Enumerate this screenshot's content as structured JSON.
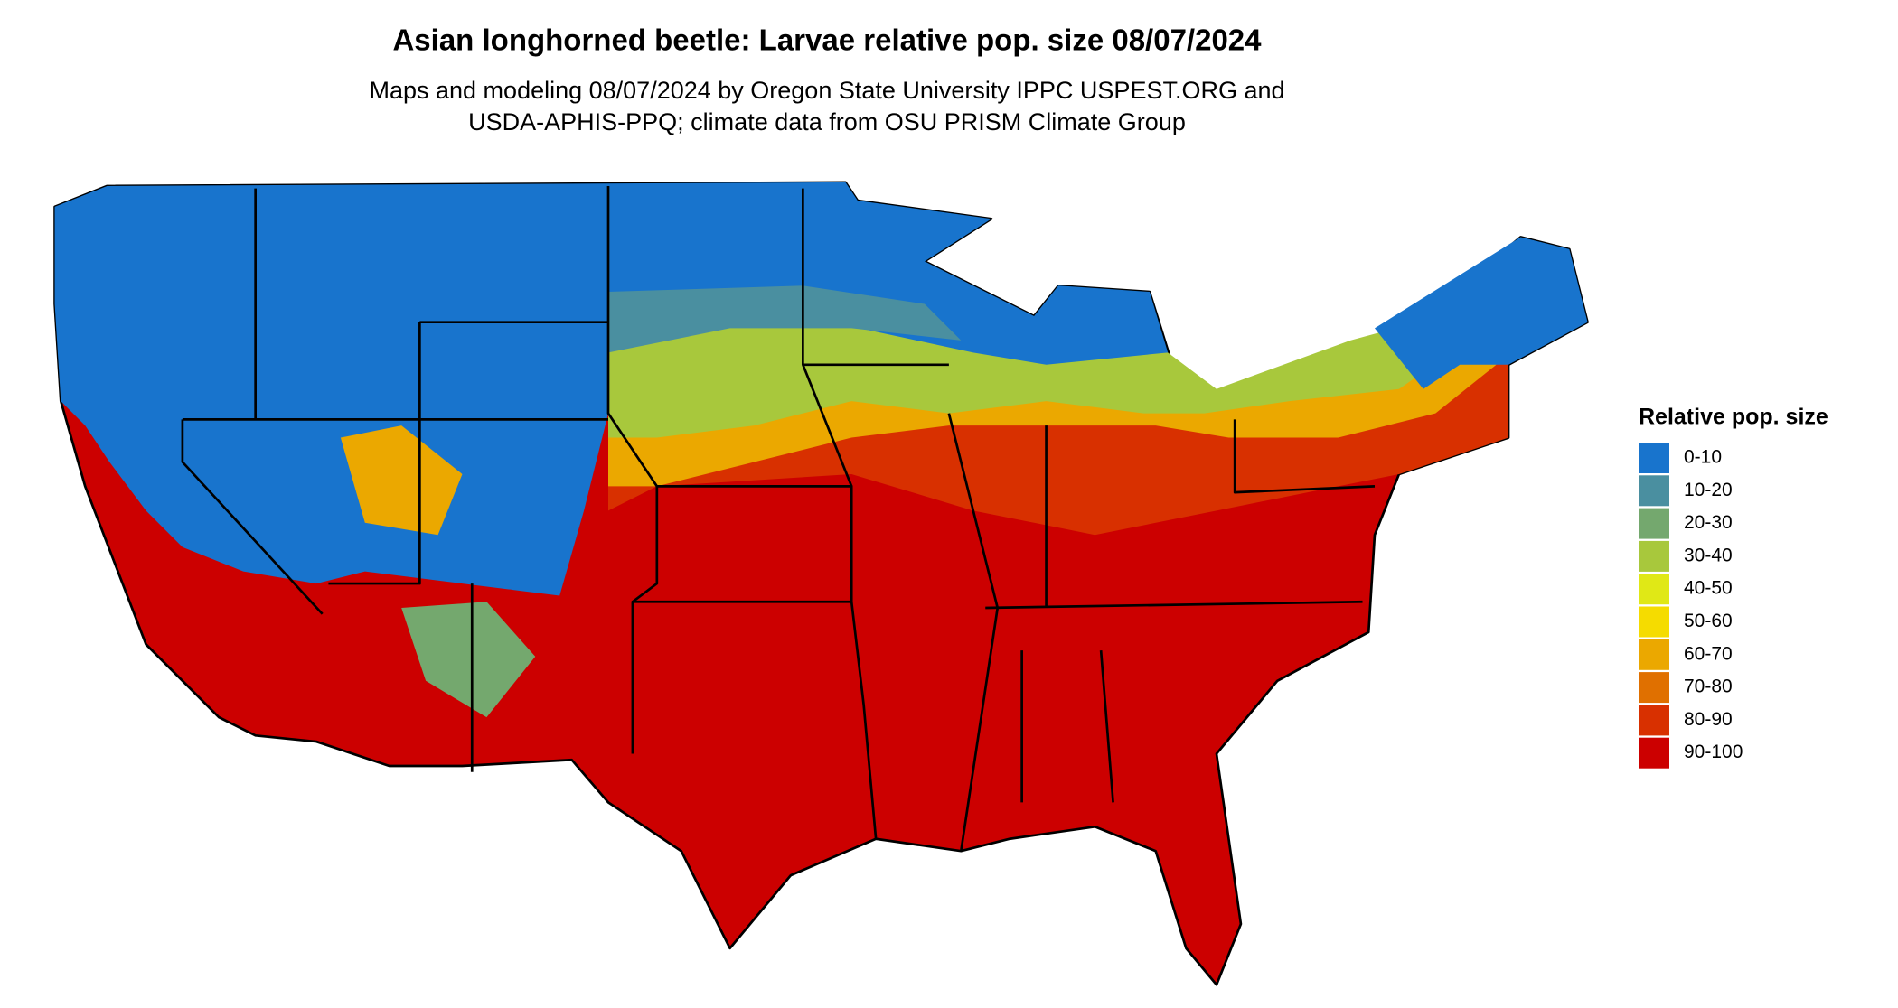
{
  "title": "Asian longhorned beetle: Larvae relative pop. size 08/07/2024",
  "subtitle": [
    "Maps and modeling 08/07/2024 by Oregon State University IPPC USPEST.ORG and",
    "USDA-APHIS-PPQ; climate data from OSU PRISM Climate Group"
  ],
  "legend": {
    "title": "Relative pop. size",
    "items": [
      {
        "label": "0-10",
        "color": "#1874cd"
      },
      {
        "label": "10-20",
        "color": "#4a8fa0"
      },
      {
        "label": "20-30",
        "color": "#74a86e"
      },
      {
        "label": "30-40",
        "color": "#a8c83c"
      },
      {
        "label": "40-50",
        "color": "#e0e816"
      },
      {
        "label": "50-60",
        "color": "#f5dc00"
      },
      {
        "label": "60-70",
        "color": "#eba800"
      },
      {
        "label": "70-80",
        "color": "#e07000"
      },
      {
        "label": "80-90",
        "color": "#d83000"
      },
      {
        "label": "90-100",
        "color": "#cc0000"
      }
    ]
  }
}
